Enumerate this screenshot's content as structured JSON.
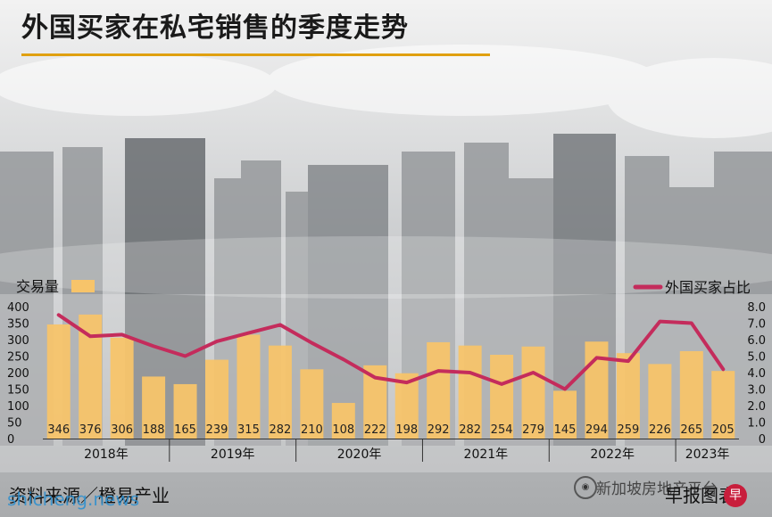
{
  "title": "外国买家在私宅销售的季度走势",
  "source": "资料来源／橙易产业",
  "credit": "早报图表",
  "watermarks": {
    "site": "shicheng.news",
    "wechat": "新加坡房地产平台"
  },
  "colors": {
    "bar": "#f7c46a",
    "line": "#c42c5c",
    "accent": "#e0a010"
  },
  "chart_data": {
    "type": "bar+line",
    "left_axis_label": "交易量",
    "right_axis_label": "外国买家占比",
    "left_ylim": [
      0,
      400
    ],
    "left_ticks": [
      "0",
      "50",
      "100",
      "150",
      "200",
      "250",
      "300",
      "350",
      "400"
    ],
    "right_ylim": [
      0,
      8
    ],
    "right_ticks": [
      "0",
      "1.0",
      "2.0",
      "3.0",
      "4.0",
      "5.0",
      "6.0",
      "7.0",
      "8.0"
    ],
    "year_labels": [
      "2018年",
      "2019年",
      "2020年",
      "2021年",
      "2022年",
      "2023年"
    ],
    "bar_values": [
      346,
      376,
      306,
      188,
      165,
      239,
      315,
      282,
      210,
      108,
      222,
      198,
      292,
      282,
      254,
      279,
      145,
      294,
      259,
      226,
      265,
      205
    ],
    "bar_labels": [
      "346",
      "376",
      "306",
      "188",
      "165",
      "239",
      "315",
      "282",
      "210",
      "108",
      "222",
      "198",
      "292",
      "282",
      "254",
      "279",
      "145",
      "294",
      "259",
      "226",
      "265",
      "205"
    ],
    "line_values": [
      7.5,
      6.2,
      6.3,
      5.6,
      5.0,
      5.9,
      6.4,
      6.9,
      5.8,
      4.8,
      3.7,
      3.4,
      4.1,
      4.0,
      3.3,
      4.0,
      3.0,
      4.9,
      4.7,
      7.1,
      7.0,
      4.2
    ]
  }
}
